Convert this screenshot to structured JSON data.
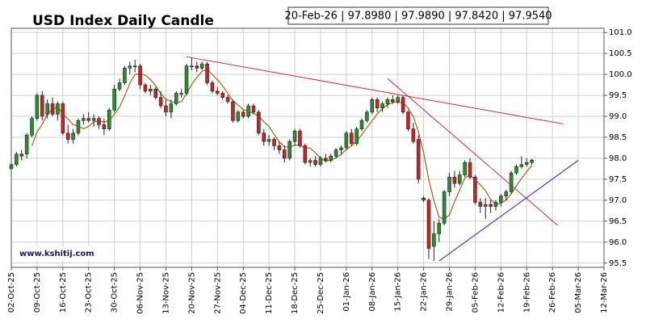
{
  "chart_data": {
    "type": "candlestick",
    "title": "USD Index Daily Candle",
    "info": "20-Feb-26 | 97.8980 | 97.9890 | 97.8420 | 97.9540",
    "watermark": "www.kshitij.com",
    "up_color": "#2e8b2e",
    "down_color": "#cc2222",
    "grid": true,
    "x": [
      "02-Oct-25",
      "03-Oct-25",
      "06-Oct-25",
      "07-Oct-25",
      "08-Oct-25",
      "09-Oct-25",
      "10-Oct-25",
      "13-Oct-25",
      "14-Oct-25",
      "15-Oct-25",
      "16-Oct-25",
      "17-Oct-25",
      "20-Oct-25",
      "21-Oct-25",
      "22-Oct-25",
      "23-Oct-25",
      "24-Oct-25",
      "27-Oct-25",
      "28-Oct-25",
      "29-Oct-25",
      "30-Oct-25",
      "31-Oct-25",
      "03-Nov-25",
      "04-Nov-25",
      "05-Nov-25",
      "06-Nov-25",
      "07-Nov-25",
      "10-Nov-25",
      "11-Nov-25",
      "12-Nov-25",
      "13-Nov-25",
      "14-Nov-25",
      "17-Nov-25",
      "18-Nov-25",
      "19-Nov-25",
      "20-Nov-25",
      "21-Nov-25",
      "24-Nov-25",
      "25-Nov-25",
      "26-Nov-25",
      "27-Nov-25",
      "28-Nov-25",
      "01-Dec-25",
      "02-Dec-25",
      "03-Dec-25",
      "04-Dec-25",
      "05-Dec-25",
      "08-Dec-25",
      "09-Dec-25",
      "10-Dec-25",
      "11-Dec-25",
      "12-Dec-25",
      "15-Dec-25",
      "16-Dec-25",
      "17-Dec-25",
      "18-Dec-25",
      "19-Dec-25",
      "22-Dec-25",
      "23-Dec-25",
      "24-Dec-25",
      "25-Dec-25",
      "26-Dec-25",
      "29-Dec-25",
      "30-Dec-25",
      "31-Dec-25",
      "01-Jan-26",
      "02-Jan-26",
      "05-Jan-26",
      "06-Jan-26",
      "07-Jan-26",
      "08-Jan-26",
      "09-Jan-26",
      "12-Jan-26",
      "13-Jan-26",
      "14-Jan-26",
      "15-Jan-26",
      "16-Jan-26",
      "19-Jan-26",
      "20-Jan-26",
      "21-Jan-26",
      "22-Jan-26",
      "23-Jan-26",
      "26-Jan-26",
      "27-Jan-26",
      "28-Jan-26",
      "29-Jan-26",
      "30-Jan-26",
      "02-Feb-26",
      "03-Feb-26",
      "04-Feb-26",
      "05-Feb-26",
      "06-Feb-26",
      "09-Feb-26",
      "10-Feb-26",
      "11-Feb-26",
      "12-Feb-26",
      "13-Feb-26",
      "16-Feb-26",
      "17-Feb-26",
      "18-Feb-26",
      "19-Feb-26",
      "20-Feb-26"
    ],
    "open": [
      97.75,
      97.85,
      98.1,
      98.1,
      98.55,
      98.95,
      99.5,
      99.05,
      99.3,
      99.05,
      99.3,
      98.6,
      98.45,
      98.6,
      98.9,
      98.95,
      98.9,
      98.95,
      98.8,
      98.7,
      99.15,
      99.65,
      99.8,
      100.15,
      100.2,
      100.2,
      99.75,
      99.6,
      99.65,
      99.45,
      99.25,
      99.1,
      99.3,
      99.55,
      99.55,
      100.2,
      100.2,
      100.15,
      100.25,
      99.8,
      99.6,
      99.55,
      99.45,
      99.35,
      98.9,
      99.1,
      99.0,
      99.25,
      99.1,
      98.6,
      98.4,
      98.45,
      98.3,
      98.2,
      98.0,
      98.4,
      98.65,
      98.3,
      97.9,
      97.95,
      97.85,
      98.0,
      97.95,
      98.05,
      98.2,
      98.25,
      98.6,
      98.35,
      98.7,
      98.9,
      99.1,
      99.4,
      99.2,
      99.3,
      99.4,
      99.35,
      99.45,
      99.1,
      98.7,
      98.45,
      97.05,
      97.0,
      95.9,
      96.2,
      96.45,
      97.2,
      97.55,
      97.4,
      97.6,
      97.9,
      97.55,
      96.95,
      96.85,
      96.9,
      96.85,
      96.95,
      97.1,
      97.2,
      97.65,
      97.8,
      97.85,
      97.898
    ],
    "high": [
      98.05,
      98.15,
      98.2,
      98.6,
      99.0,
      99.55,
      99.6,
      99.4,
      99.45,
      99.35,
      99.35,
      98.8,
      98.7,
      98.95,
      99.05,
      99.1,
      99.05,
      99.0,
      98.95,
      99.2,
      99.75,
      99.9,
      100.2,
      100.3,
      100.35,
      100.25,
      99.8,
      99.75,
      99.7,
      99.6,
      99.4,
      99.4,
      99.6,
      99.65,
      100.25,
      100.4,
      100.3,
      100.3,
      100.3,
      99.85,
      99.7,
      99.6,
      99.5,
      99.4,
      99.15,
      99.15,
      99.3,
      99.3,
      99.15,
      98.7,
      98.55,
      98.5,
      98.4,
      98.3,
      98.45,
      98.7,
      98.7,
      98.35,
      98.0,
      98.05,
      98.05,
      98.1,
      98.1,
      98.25,
      98.3,
      98.65,
      98.7,
      98.75,
      98.95,
      99.15,
      99.45,
      99.45,
      99.35,
      99.45,
      99.5,
      99.5,
      99.5,
      99.15,
      98.85,
      98.55,
      97.1,
      97.05,
      96.5,
      96.55,
      97.25,
      97.65,
      97.7,
      97.7,
      97.95,
      98.0,
      97.6,
      97.05,
      97.05,
      97.0,
      97.0,
      97.15,
      97.25,
      97.7,
      97.85,
      98.05,
      98.0,
      97.989
    ],
    "low": [
      97.6,
      97.8,
      97.95,
      98.0,
      98.5,
      98.9,
      98.9,
      98.95,
      99.0,
      98.9,
      98.55,
      98.35,
      98.35,
      98.55,
      98.8,
      98.85,
      98.75,
      98.7,
      98.55,
      98.65,
      99.1,
      99.6,
      99.75,
      100.0,
      100.05,
      99.65,
      99.55,
      99.5,
      99.4,
      99.2,
      99.0,
      98.95,
      99.25,
      99.45,
      99.5,
      100.1,
      100.05,
      100.1,
      99.75,
      99.55,
      99.5,
      99.4,
      99.3,
      98.85,
      98.85,
      98.95,
      98.95,
      99.05,
      98.55,
      98.3,
      98.3,
      98.2,
      98.1,
      97.9,
      97.95,
      98.3,
      98.25,
      97.85,
      97.8,
      97.8,
      97.8,
      97.9,
      97.9,
      98.0,
      98.1,
      98.2,
      98.3,
      98.3,
      98.65,
      98.85,
      99.05,
      99.1,
      99.1,
      99.2,
      99.3,
      99.3,
      99.05,
      98.65,
      98.35,
      97.4,
      96.95,
      95.6,
      95.55,
      96.0,
      96.4,
      97.1,
      97.3,
      97.35,
      97.55,
      97.5,
      96.9,
      96.7,
      96.55,
      96.7,
      96.75,
      96.85,
      97.0,
      97.15,
      97.6,
      97.75,
      97.8,
      97.842
    ],
    "close": [
      97.85,
      98.1,
      98.05,
      98.55,
      98.95,
      99.5,
      99.0,
      99.3,
      99.05,
      99.3,
      98.6,
      98.45,
      98.6,
      98.9,
      98.95,
      98.9,
      98.95,
      98.8,
      98.7,
      99.15,
      99.65,
      99.8,
      100.15,
      100.2,
      100.2,
      99.75,
      99.6,
      99.65,
      99.45,
      99.25,
      99.1,
      99.3,
      99.55,
      99.55,
      100.2,
      100.2,
      100.15,
      100.25,
      99.8,
      99.6,
      99.55,
      99.45,
      99.35,
      98.9,
      99.1,
      99.0,
      99.25,
      99.1,
      98.6,
      98.4,
      98.45,
      98.3,
      98.2,
      98.0,
      98.4,
      98.65,
      98.3,
      97.9,
      97.95,
      97.85,
      98.0,
      97.95,
      98.05,
      98.2,
      98.25,
      98.6,
      98.35,
      98.7,
      98.9,
      99.1,
      99.4,
      99.2,
      99.3,
      99.4,
      99.35,
      99.45,
      99.1,
      98.7,
      98.4,
      97.5,
      97.0,
      95.85,
      96.2,
      96.45,
      97.2,
      97.55,
      97.4,
      97.6,
      97.9,
      97.55,
      96.95,
      96.85,
      96.9,
      96.85,
      96.95,
      97.1,
      97.2,
      97.65,
      97.8,
      97.85,
      97.9,
      97.954
    ],
    "ma": {
      "color": "#a0641e",
      "values": [
        null,
        null,
        null,
        null,
        98.3,
        98.63,
        98.81,
        99.06,
        99.16,
        99.23,
        99.05,
        98.94,
        98.8,
        98.77,
        98.7,
        98.76,
        98.86,
        98.9,
        98.86,
        98.9,
        99.05,
        99.22,
        99.49,
        99.79,
        100.0,
        100.02,
        99.98,
        99.88,
        99.73,
        99.54,
        99.41,
        99.35,
        99.33,
        99.35,
        99.54,
        99.76,
        99.93,
        100.07,
        100.12,
        100.0,
        99.87,
        99.73,
        99.55,
        99.37,
        99.27,
        99.16,
        99.12,
        99.07,
        99.01,
        98.87,
        98.76,
        98.57,
        98.39,
        98.27,
        98.27,
        98.31,
        98.31,
        98.25,
        98.24,
        98.13,
        98.0,
        97.93,
        97.96,
        98.01,
        98.09,
        98.21,
        98.29,
        98.42,
        98.56,
        98.73,
        98.89,
        99.06,
        99.18,
        99.28,
        99.33,
        99.34,
        99.32,
        99.2,
        99.0,
        98.63,
        98.14,
        97.49,
        96.99,
        96.6,
        96.54,
        96.65,
        96.96,
        97.24,
        97.53,
        97.6,
        97.48,
        97.37,
        97.23,
        97.02,
        96.9,
        96.93,
        97.0,
        97.15,
        97.34,
        97.52,
        97.68,
        97.83
      ]
    },
    "trend_lines": [
      {
        "color": "#c83232",
        "x": [
          "19-Nov-25",
          "02-Mar-26"
        ],
        "y": [
          100.42,
          98.82
        ]
      },
      {
        "color": "#c83232",
        "x": [
          "13-Jan-26",
          "27-Feb-26"
        ],
        "y": [
          99.9,
          96.4
        ]
      },
      {
        "color": "#2828c8",
        "x": [
          "27-Jan-26",
          "05-Mar-26"
        ],
        "y": [
          95.55,
          97.95
        ]
      }
    ],
    "xlim": [
      "02-Oct-25",
      "12-Mar-26"
    ],
    "xticks": [
      "02-Oct-25",
      "09-Oct-25",
      "16-Oct-25",
      "23-Oct-25",
      "30-Oct-25",
      "06-Nov-25",
      "13-Nov-25",
      "20-Nov-25",
      "27-Nov-25",
      "04-Dec-25",
      "11-Dec-25",
      "18-Dec-25",
      "25-Dec-25",
      "01-Jan-26",
      "08-Jan-26",
      "15-Jan-26",
      "22-Jan-26",
      "29-Jan-26",
      "05-Feb-26",
      "12-Feb-26",
      "19-Feb-26",
      "26-Feb-26",
      "05-Mar-26",
      "12-Mar-26"
    ],
    "ylim": [
      95.4,
      101.1
    ],
    "yticks": [
      {
        "value": 101,
        "label": "101.0"
      },
      100.5,
      {
        "value": 100,
        "label": "100.0"
      },
      99.5,
      {
        "value": 99,
        "label": "99.0"
      },
      98.5,
      {
        "value": 98,
        "label": "98.0"
      },
      97.5,
      {
        "value": 97,
        "label": "97.0"
      },
      96.5,
      {
        "value": 96,
        "label": "96.0"
      },
      95.5
    ]
  }
}
